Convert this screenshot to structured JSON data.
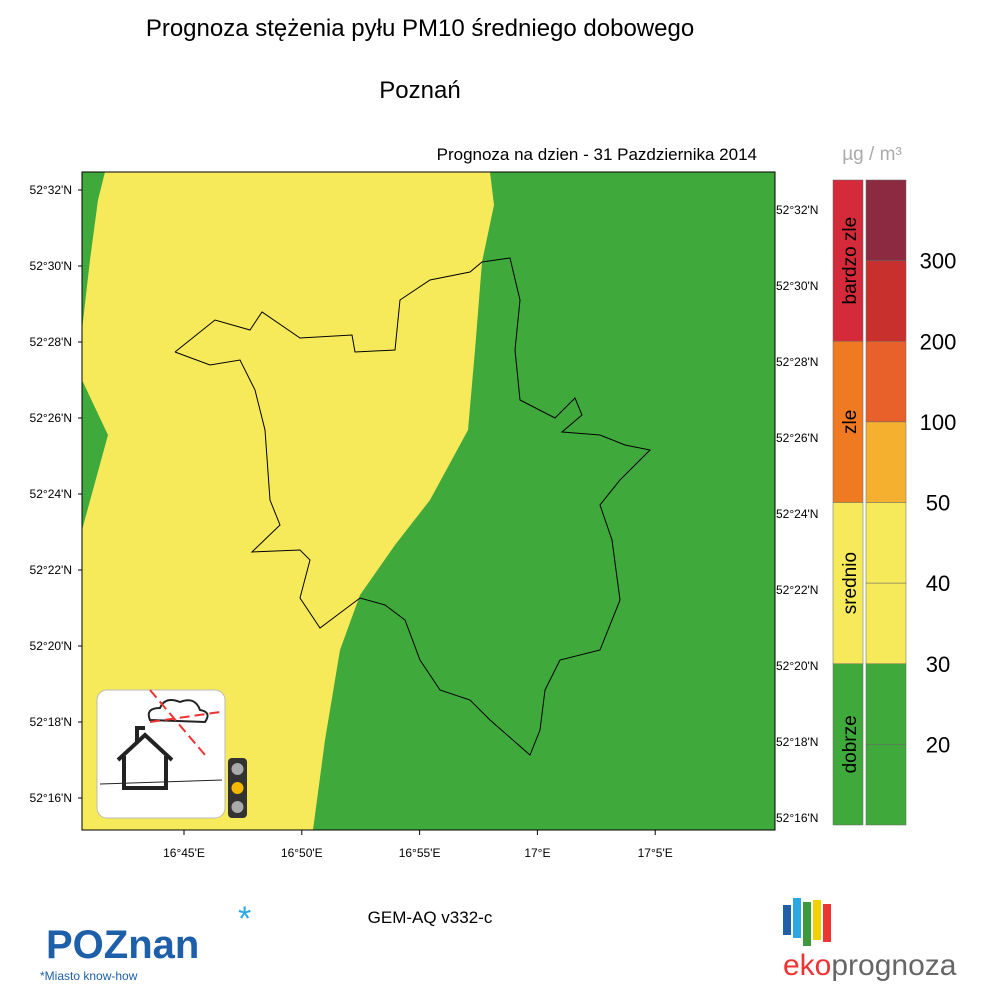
{
  "header": {
    "title": "Prognoza stężenia pyłu PM10 średniego dobowego",
    "city": "Poznań",
    "forecast_date": "Prognoza na dzien -  31 Pazdziernika 2014"
  },
  "map": {
    "lat_labels_left": [
      "52°32'N",
      "52°30'N",
      "52°28'N",
      "52°26'N",
      "52°24'N",
      "52°22'N",
      "52°20'N",
      "52°18'N",
      "52°16'N"
    ],
    "lat_labels_right": [
      "52°32'N",
      "52°30'N",
      "52°28'N",
      "52°26'N",
      "52°24'N",
      "52°22'N",
      "52°20'N",
      "52°18'N",
      "52°16'N"
    ],
    "lon_labels": [
      "16°45'E",
      "16°50'E",
      "16°55'E",
      "17°E",
      "17°5'E"
    ],
    "colors": {
      "low": "#40a93b",
      "medium": "#f7ea5a"
    }
  },
  "legend": {
    "unit": "µg / m³",
    "categories": [
      {
        "label": "bardzo zle",
        "color": "#d42a3a"
      },
      {
        "label": "zle",
        "color": "#ef7a22"
      },
      {
        "label": "srednio",
        "color": "#f7ea5a"
      },
      {
        "label": "dobrze",
        "color": "#40a93b"
      }
    ],
    "levels": [
      {
        "color": "#8b2a40"
      },
      {
        "label": "300",
        "color": "#c8302e"
      },
      {
        "label": "200",
        "color": "#e8602a"
      },
      {
        "label": "100",
        "color": "#f5b030"
      },
      {
        "label": "50",
        "color": "#f7ea5a"
      },
      {
        "label": "40",
        "color": "#f7ea5a"
      },
      {
        "label": "30",
        "color": "#40a93b"
      },
      {
        "label": "20",
        "color": "#40a93b"
      }
    ]
  },
  "footer": {
    "model": "GEM-AQ v332-c",
    "logo_left": "POZnan",
    "logo_left_tagline": "*Miasto know-how",
    "logo_right": [
      "eko",
      "prognoza"
    ]
  }
}
